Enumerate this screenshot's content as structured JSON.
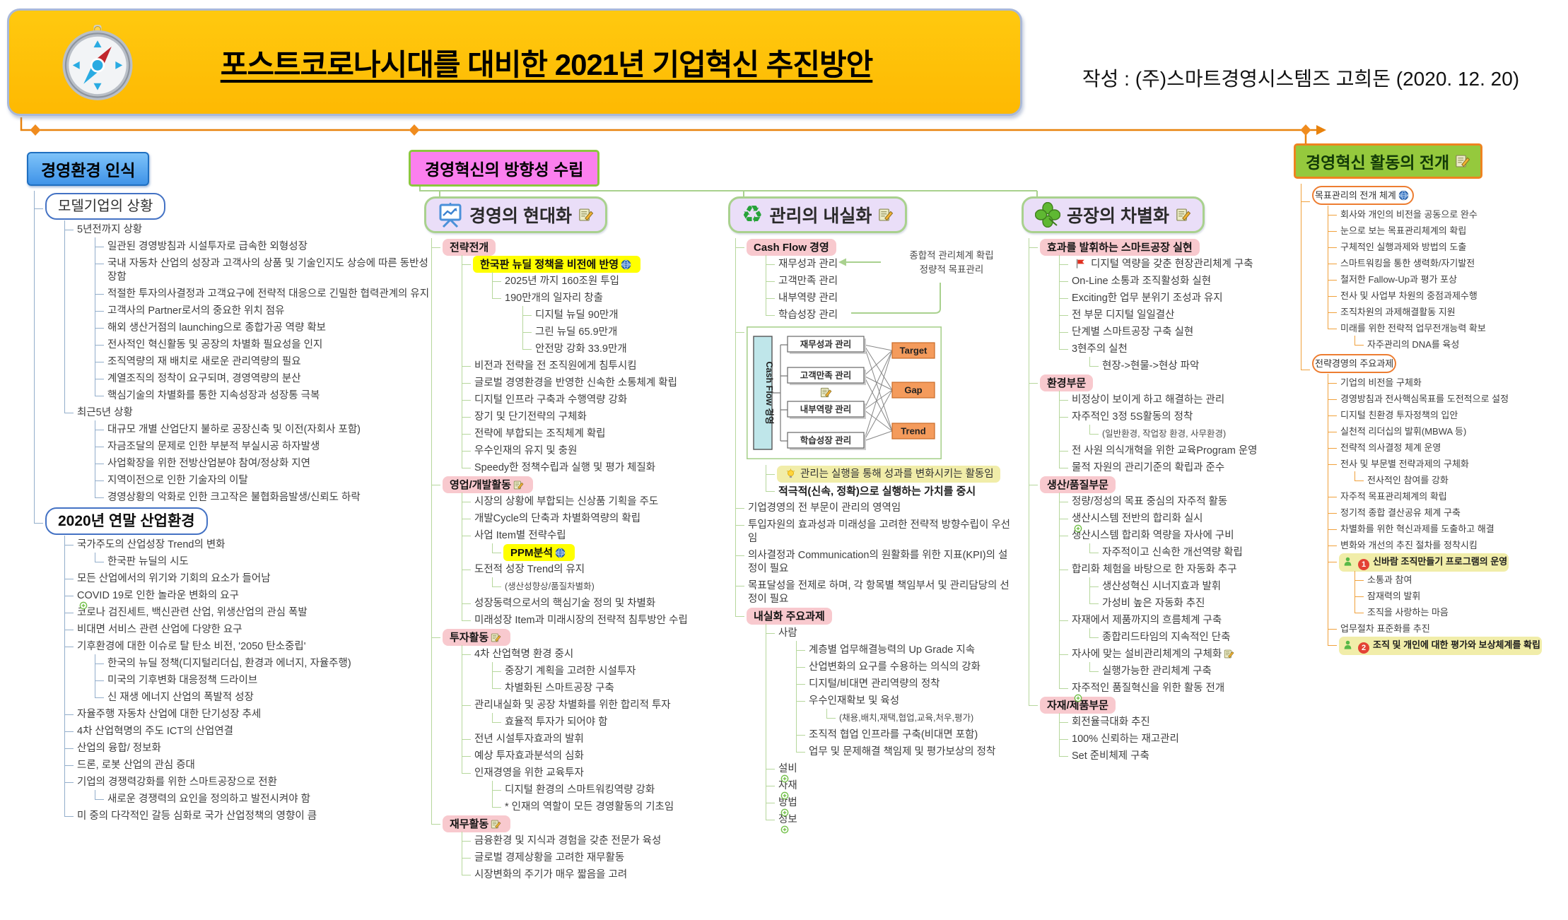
{
  "meta": {
    "title": "포스트코로나시대를 대비한 2021년 기업혁신 추진방안",
    "author": "작성 : (주)스마트경영시스템즈 고희돈 (2020. 12. 20)"
  },
  "roots": {
    "env": {
      "label": "경영환경 인식"
    },
    "direction": {
      "label": "경영혁신의 방향성 수립"
    },
    "deploy": {
      "label": "경영혁신 활동의 전개"
    }
  },
  "headers": {
    "modern": "경영의 현대화",
    "internal": "관리의 내실화",
    "factory": "공장의 차별화"
  },
  "callout": {
    "line1": "종합적 관리체계 확립",
    "line2": "정량적 목표관리"
  },
  "diagram": {
    "side": "Cash Flow 경영",
    "rows": [
      "재무성과 관리",
      "고객만족 관리",
      "내부역량 관리",
      "학습성장 관리"
    ],
    "outputs": [
      "Target",
      "Gap",
      "Trend"
    ]
  },
  "trees": {
    "env": [
      {
        "t": "모델기업의 상황",
        "cls": "bbox",
        "c": [
          {
            "t": "5년전까지 상황",
            "c": [
              {
                "t": "일관된 경영방침과 시설투자로 급속한 외형성장"
              },
              {
                "t": "국내 자동차 산업의 성장과 고객사의 상품 및 기술인지도 상승에 따른 동반성장함"
              },
              {
                "t": "적절한 투자의사결정과 고객요구에 전략적 대응으로 긴밀한 협력관계의 유지"
              },
              {
                "t": "고객사의 Partner로서의 중요한 위치 점유"
              },
              {
                "t": "해외 생산거점의 launching으로 종합가공 역량 확보"
              },
              {
                "t": "전사적인 혁신활동 및 공장의 차별화 필요성을 인지"
              },
              {
                "t": "조직역량의 재 배치로 새로운 관리역량의 필요"
              },
              {
                "t": "계열조직의 정착이 요구되며, 경영역량의 분산"
              },
              {
                "t": "핵심기술의 차별화를 통한 지속성장과 성장통 극복"
              }
            ]
          },
          {
            "t": "최근5년 상황",
            "c": [
              {
                "t": "대규모 개별 산업단지 불하로 공장신축 및 이전(자회사 포함)"
              },
              {
                "t": "자금조달의 문제로 인한 부분적 부실시공 하자발생"
              },
              {
                "t": "사업확장을 위한 전방산업분야 참여/정상화 지연"
              },
              {
                "t": "지역이전으로 인한 기술자의 이탈"
              },
              {
                "t": "경영상황의 악화로 인한 크고작은 불협화음발생/신뢰도 하락"
              }
            ]
          }
        ]
      },
      {
        "t": "2020년 연말 산업환경",
        "cls": "b2020",
        "c": [
          {
            "t": "국가주도의 산업성장 Trend의 변화",
            "c": [
              {
                "t": "한국판 뉴딜의 시도"
              }
            ]
          },
          {
            "t": "모든 산업에서의 위기와 기회의 요소가 들어남"
          },
          {
            "t": "COVID 19로 인한 놀라운 변화의 요구",
            "plus": true
          },
          {
            "t": "코로나 검진세트, 백신관련 산업, 위생산업의 관심 폭발"
          },
          {
            "t": "비대면 서비스 관련 산업에 다양한 요구"
          },
          {
            "t": "기후환경에 대한 이슈로 탈 탄소 비전, '2050 탄소중립'",
            "c": [
              {
                "t": "한국의 뉴딜 정책(디지털리더십, 환경과 에너지, 자율주행)"
              },
              {
                "t": "미국의 기후변화 대응정책 드라이브"
              },
              {
                "t": "신 재생 에너지 산업의 폭발적 성장"
              }
            ]
          },
          {
            "t": "자율주행 자동차 산업에 대한 단기성장 추세"
          },
          {
            "t": "4차 산업혁명의 주도 ICT의 산업연결"
          },
          {
            "t": "산업의 융합/ 정보화"
          },
          {
            "t": "드론, 로봇 산업의 관심 증대"
          },
          {
            "t": "기업의 경쟁력강화를 위한 스마트공장으로 전환",
            "c": [
              {
                "t": "새로운 경쟁력의 요인을 정의하고 발전시켜야 함"
              }
            ]
          },
          {
            "t": "미 중의 다각적인 갈등 심화로 국가 산업정책의 영향이 큼"
          }
        ]
      }
    ],
    "modern": [
      {
        "t": "전략전개",
        "cls": "pink",
        "c": [
          {
            "t": "한국판 뉴딜 정책을 비전에 반영",
            "cls": "ybright",
            "icons": [
              "globe"
            ],
            "c": [
              {
                "t": "2025년 까지 160조원 투입"
              },
              {
                "t": "190만개의 일자리 창출",
                "c": [
                  {
                    "t": "디지털 뉴딜 90만개"
                  },
                  {
                    "t": "그린 뉴딜 65.9만개"
                  },
                  {
                    "t": "안전망 강화 33.9만개"
                  }
                ]
              }
            ]
          },
          {
            "t": "비전과 전략을 전 조직원에게 침투시킴"
          },
          {
            "t": "글로벌 경영환경을 반영한 신속한 소통체계 확립"
          },
          {
            "t": "디지털 인프라 구축과 수행역량 강화"
          },
          {
            "t": "장기 및 단기전략의 구체화"
          },
          {
            "t": "전략에 부합되는 조직체계 확립"
          },
          {
            "t": "우수인재의 유지 및 충원"
          },
          {
            "t": "Speedy한 정책수립과 실행 및 평가 체질화"
          }
        ]
      },
      {
        "t": "영업/개발활동",
        "cls": "pink",
        "icons": [
          "note"
        ],
        "c": [
          {
            "t": "시장의 상황에 부합되는 신상품 기획을 주도"
          },
          {
            "t": "개발Cycle의 단축과 차별화역량의 확립"
          },
          {
            "t": "사업 Item별 전략수립",
            "c": [
              {
                "t": "PPM분석",
                "cls": "ybright",
                "icons": [
                  "globe"
                ]
              }
            ]
          },
          {
            "t": "도전적 성장 Trend의 유지",
            "c": [
              {
                "t": "(생산성향상/품질차별화)",
                "cls": "small"
              }
            ]
          },
          {
            "t": "성장동력으로서의 핵심기술 정의 및 차별화"
          },
          {
            "t": "미래성장 Item과 미래시장의 전략적 침투방안 수립"
          }
        ]
      },
      {
        "t": "투자활동",
        "cls": "pink",
        "icons": [
          "note"
        ],
        "c": [
          {
            "t": "4차 산업혁명 환경 중시",
            "c": [
              {
                "t": "중장기 계획을 고려한 시설투자"
              },
              {
                "t": "차별화된 스마트공장 구축"
              }
            ]
          },
          {
            "t": "관리내실화 및 공장 차별화를 위한 합리적 투자",
            "c": [
              {
                "t": "효율적 투자가 되어야 함"
              }
            ]
          },
          {
            "t": "전년 시설투자효과의 발휘"
          },
          {
            "t": "예상 투자효과분석의 심화"
          },
          {
            "t": "인재경영을 위한 교육투자",
            "c": [
              {
                "t": "디지털 환경의 스마트워킹역량 강화"
              },
              {
                "t": "* 인재의 역할이 모든 경영활동의 기초임"
              }
            ]
          }
        ]
      },
      {
        "t": "재무활동",
        "cls": "pink",
        "icons": [
          "note"
        ],
        "c": [
          {
            "t": "금융환경 및 지식과 경험을 갖춘 전문가 육성"
          },
          {
            "t": "글로벌 경제상황을 고려한 재무활동"
          },
          {
            "t": "시장변화의 주기가 매우 짧음을 고려"
          }
        ]
      }
    ],
    "internal": [
      {
        "t": "Cash Flow 경영",
        "cls": "pink",
        "c": [
          {
            "t": "재무성과 관리"
          },
          {
            "t": "고객만족 관리"
          },
          {
            "t": "내부역량 관리"
          },
          {
            "t": "학습성장 관리"
          }
        ]
      },
      {
        "ref": "bsc-diagram",
        "c": [
          {
            "t": "관리는 실행을 통해 성과를 변화시키는 활동임",
            "cls": "ysoft",
            "icons_pre": [
              "bulb"
            ]
          },
          {
            "t": "적극적(신속, 정확)으로 실행하는 가치를 중시",
            "cls": "bold"
          }
        ]
      },
      {
        "t": "기업경영의 전 부문이 관리의 영역임"
      },
      {
        "t": "투입자원의 효과성과 미래성을 고려한 전략적 방향수립이 우선임"
      },
      {
        "t": "의사결정과 Communication의 원활화를 위한 지표(KPI)의 설정이 필요"
      },
      {
        "t": "목표달성을 전제로 하며, 각 항목별 책임부서 및 관리담당의 선정이 필요"
      },
      {
        "t": "내실화 주요과제",
        "cls": "pink",
        "c": [
          {
            "t": "사람",
            "c": [
              {
                "t": "계층별 업무해결능력의 Up Grade 지속"
              },
              {
                "t": "산업변화의 요구를 수용하는 의식의 강화"
              },
              {
                "t": "디지털/비대면 관리역량의 정착"
              },
              {
                "t": "우수인재확보 및 육성",
                "c": [
                  {
                    "t": "(채용,배치,재택,협업,교육,처우,평가)",
                    "cls": "small"
                  }
                ]
              },
              {
                "t": "조직적 협업 인프라를 구축(비대면 포함)"
              },
              {
                "t": "업무 및 문제해결 책임제 및 평가보상의 정착"
              }
            ]
          },
          {
            "t": "설비",
            "plus": true
          },
          {
            "t": "자재",
            "plus": true
          },
          {
            "t": "방법",
            "plus": true
          },
          {
            "t": "정보",
            "plus": true
          }
        ]
      }
    ],
    "factory": [
      {
        "t": "효과를 발휘하는 스마트공장 실현",
        "cls": "pink",
        "c": [
          {
            "t": "디지털 역량을 갖춘 현장관리체계 구축",
            "icons_pre": [
              "flag"
            ]
          },
          {
            "t": "On-Line 소통과 조직활성화 실현"
          },
          {
            "t": "Exciting한 업무 분위기 조성과 유지"
          },
          {
            "t": "전 부문 디지털 일일결산"
          },
          {
            "t": "단계별 스마트공장 구축 실현"
          },
          {
            "t": "3현주의 실천",
            "c": [
              {
                "t": "현장->현물->현상 파악"
              }
            ]
          }
        ]
      },
      {
        "t": "환경부문",
        "cls": "pink",
        "c": [
          {
            "t": "비정상이 보이게 하고 해결하는 관리"
          },
          {
            "t": "자주적인 3정 5S활동의 정착",
            "c": [
              {
                "t": "(일반환경, 작업장 환경, 사무환경)",
                "cls": "small"
              }
            ]
          },
          {
            "t": "전 사원 의식개혁을 위한 교육Program 운영"
          },
          {
            "t": "물적 자원의 관리기준의 확립과 준수"
          }
        ]
      },
      {
        "t": "생산/품질부문",
        "cls": "pink",
        "c": [
          {
            "t": "정량/정성의 목표 중심의 자주적 활동"
          },
          {
            "t": "생산시스템 전반의 합리화 실시",
            "plus": true
          },
          {
            "t": "생산시스템 합리화 역량을 자사에 구비",
            "c": [
              {
                "t": "자주적이고 신속한 개선역량 확립"
              }
            ]
          },
          {
            "t": "합리화 체험을 바탕으로 한 자동화 추구",
            "c": [
              {
                "t": "생산성혁신 시너지효과 발휘"
              },
              {
                "t": "가성비 높은 자동화 추진"
              }
            ]
          },
          {
            "t": "자재에서 제품까지의 흐름체계 구축",
            "c": [
              {
                "t": "종합리드타임의 지속적인 단축"
              }
            ]
          },
          {
            "t": "자사에 맞는 설비관리체계의 구체화",
            "icons": [
              "note"
            ],
            "c": [
              {
                "t": "실행가능한 관리체계 구축"
              }
            ]
          },
          {
            "t": "자주적인 품질혁신을 위한 활동 전개",
            "plus": true
          }
        ]
      },
      {
        "t": "자재/제품부문",
        "cls": "pink",
        "c": [
          {
            "t": "회전율극대화 추진"
          },
          {
            "t": "100% 신뢰하는 재고관리"
          },
          {
            "t": "Set 준비체제 구축"
          }
        ]
      }
    ],
    "deploy": [
      {
        "t": "목표관리의 전개 체계",
        "cls": "rbox",
        "icons": [
          "globe"
        ],
        "c": [
          {
            "t": "회사와 개인의 비전을 공동으로 완수"
          },
          {
            "t": "눈으로 보는 목표관리체계의 확립"
          },
          {
            "t": "구체적인 실행과제와 방법의 도출"
          },
          {
            "t": "스마트워킹을 통한 생력화/자기발전"
          },
          {
            "t": "철저한 Fallow-Up과 평가 포상"
          },
          {
            "t": "전사 및 사업부 차원의 중점과제수행"
          },
          {
            "t": "조직차원의 과제해결활동 지원"
          },
          {
            "t": "미래를 위한 전략적 업무전개능력 확보",
            "c": [
              {
                "t": "자주관리의 DNA를 육성"
              }
            ]
          }
        ]
      },
      {
        "t": "전략경영의 주요과제",
        "cls": "rbox",
        "c": [
          {
            "t": "기업의 비전을 구체화"
          },
          {
            "t": "경영방침과 전사핵심목표를 도전적으로 설정"
          },
          {
            "t": "디지털 친환경 투자정책의 입안"
          },
          {
            "t": "실천적 리더십의 발휘(MBWA 등)"
          },
          {
            "t": "전략적 의사결정 체계 운영"
          },
          {
            "t": "전사 및 부문별 전략과제의 구체화",
            "c": [
              {
                "t": "전사적인 참여를 강화"
              }
            ]
          },
          {
            "t": "자주적 목표관리체계의 확립"
          },
          {
            "t": "정기적 종합 결산공유 체계 구축"
          },
          {
            "t": "차별화를 위한 혁신과제를 도출하고 해결"
          },
          {
            "t": "변화와 개선의 추진 절차를 정착시킴"
          },
          {
            "t": "신바람 조직만들기 프로그램의 운영",
            "cls": "ysoft bold",
            "icons_pre": [
              "person",
              "n1"
            ],
            "c": [
              {
                "t": "소통과 참여"
              },
              {
                "t": "잠재력의 발휘"
              },
              {
                "t": "조직을 사랑하는 마음"
              }
            ]
          },
          {
            "t": "업무절차 표준화를 추진"
          },
          {
            "t": "조직 및 개인에 대한 평가와 보상체계를 확립",
            "cls": "ysoft bold",
            "icons_pre": [
              "person",
              "n2"
            ]
          }
        ]
      }
    ]
  }
}
